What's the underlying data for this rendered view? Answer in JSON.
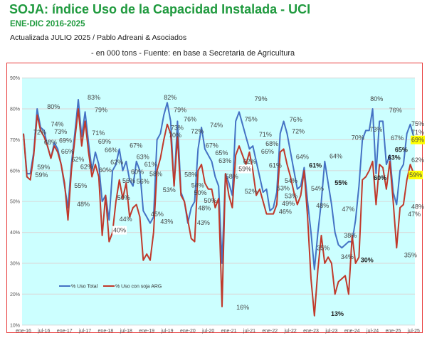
{
  "header": {
    "title": "SOJA: índice Uso de la Capacidad Instalada - UCI",
    "subtitle": "ENE-DIC 2016-2025",
    "updated": "Actualizada  JULIO  2025 / Pablo Adreani & Asociados",
    "source": "- en 000 tons - Fuente: en base a Secretaria de Agricultura"
  },
  "colors": {
    "total": "#4472C4",
    "arg": "#C0392B",
    "plot_bg": "#CCFFFF",
    "frame": "#E83A3A",
    "highlight": "#FFFF00",
    "title": "#1F9A3E"
  },
  "chart_data": {
    "type": "line",
    "title": "SOJA: índice Uso de la Capacidad Instalada - UCI",
    "xlabel": "",
    "ylabel": "",
    "ylim": [
      10,
      90
    ],
    "yticks": [
      "10%",
      "20%",
      "30%",
      "40%",
      "50%",
      "60%",
      "70%",
      "80%",
      "90%"
    ],
    "x_start": "ene-16",
    "x_end": "jul-25",
    "x_unit": "month",
    "xticks": [
      "ene-16",
      "jul-16",
      "ene-17",
      "jul-17",
      "ene-18",
      "jul-18",
      "ene-19",
      "jul-19",
      "ene-20",
      "jul-20",
      "ene-21",
      "jul-21",
      "ene-22",
      "jul-22",
      "ene-23",
      "jul-23",
      "ene-24",
      "jul-24",
      "ene-25",
      "jul-25"
    ],
    "grid": true,
    "legend_position": "bottom-left",
    "series": [
      {
        "name": "% Uso Total",
        "color": "#4472C4",
        "values": [
          72,
          59,
          59,
          66,
          80,
          74,
          73,
          68,
          64,
          69,
          67,
          62,
          55,
          48,
          62,
          72,
          83,
          71,
          79,
          69,
          60,
          66,
          62,
          50,
          52,
          44,
          60,
          62,
          67,
          60,
          63,
          57,
          55,
          63,
          60,
          47,
          45,
          43,
          45,
          70,
          72,
          78,
          82,
          76,
          55,
          76,
          53,
          50,
          43,
          48,
          50,
          67,
          74,
          67,
          65,
          63,
          58,
          55,
          30,
          59,
          56,
          52,
          76,
          79,
          75,
          71,
          67,
          68,
          63,
          58,
          53,
          54,
          47,
          48,
          53,
          72,
          76,
          72,
          66,
          60,
          54,
          55,
          61,
          50,
          40,
          28,
          40,
          50,
          63,
          56,
          49,
          40,
          36,
          35,
          36,
          37,
          37,
          44,
          55,
          70,
          73,
          73,
          80,
          59,
          76,
          76,
          62,
          65,
          53,
          49,
          60,
          62,
          72,
          75,
          71
        ]
      },
      {
        "name": "% Uso con soja ARG",
        "color": "#C0392B",
        "values": [
          72,
          58,
          57,
          65,
          78,
          73,
          71,
          68,
          64,
          68,
          66,
          62,
          56,
          44,
          60,
          70,
          80,
          68,
          76,
          66,
          58,
          62,
          58,
          39,
          52,
          37,
          40,
          50,
          57,
          51,
          56,
          45,
          48,
          49,
          45,
          31,
          33,
          31,
          40,
          60,
          64,
          70,
          75,
          72,
          55,
          71,
          52,
          50,
          44,
          38,
          37,
          60,
          62,
          56,
          54,
          54,
          48,
          51,
          16,
          59,
          52,
          48,
          65,
          68,
          65,
          62,
          66,
          60,
          52,
          54,
          50,
          46,
          46,
          46,
          49,
          66,
          67,
          62,
          58,
          53,
          49,
          52,
          60,
          45,
          25,
          13,
          28,
          39,
          30,
          32,
          30,
          20,
          24,
          25,
          26,
          20,
          39,
          30,
          32,
          57,
          58,
          60,
          63,
          49,
          62,
          61,
          54,
          63,
          50,
          35,
          48,
          49,
          57,
          62,
          59
        ]
      }
    ],
    "data_labels": [
      {
        "text": "72%",
        "x": 2.9,
        "y": 71.7
      },
      {
        "text": "80%",
        "x": 6.9,
        "y": 80
      },
      {
        "text": "74%",
        "x": 8,
        "y": 74
      },
      {
        "text": "73%",
        "x": 9,
        "y": 72.3
      },
      {
        "text": "68%",
        "x": 6,
        "y": 68.5
      },
      {
        "text": "69%",
        "x": 10.4,
        "y": 69
      },
      {
        "text": "66%",
        "x": 11,
        "y": 65
      },
      {
        "text": "59%",
        "x": 4,
        "y": 59.5
      },
      {
        "text": "59%",
        "x": 3.4,
        "y": 58.8
      },
      {
        "text": "62%",
        "x": 14,
        "y": 62
      },
      {
        "text": "62%",
        "x": 16.6,
        "y": 62
      },
      {
        "text": "55%",
        "x": 14.8,
        "y": 54.4
      },
      {
        "text": "48%",
        "x": 15.6,
        "y": 48.4
      },
      {
        "text": "83%",
        "x": 18.7,
        "y": 83
      },
      {
        "text": "79%",
        "x": 20.8,
        "y": 79
      },
      {
        "text": "71%",
        "x": 20,
        "y": 71.5
      },
      {
        "text": "69%",
        "x": 21.8,
        "y": 68.7
      },
      {
        "text": "66%",
        "x": 23.7,
        "y": 66
      },
      {
        "text": "60%",
        "x": 22,
        "y": 59.7
      },
      {
        "text": "62%",
        "x": 25.4,
        "y": 61.8
      },
      {
        "text": "67%",
        "x": 31,
        "y": 67.5
      },
      {
        "text": "63%",
        "x": 33,
        "y": 63
      },
      {
        "text": "60%",
        "x": 31.4,
        "y": 60
      },
      {
        "text": "61%",
        "x": 35.3,
        "y": 61
      },
      {
        "text": "58%",
        "x": 36.8,
        "y": 58
      },
      {
        "text": "56%",
        "x": 28.9,
        "y": 56
      },
      {
        "text": "56%",
        "x": 33,
        "y": 56
      },
      {
        "text": "50%",
        "x": 27.4,
        "y": 50.5
      },
      {
        "text": "44%",
        "x": 28,
        "y": 43.6
      },
      {
        "text": "40%",
        "x": 26.2,
        "y": 40,
        "box": "#FFFFFF"
      },
      {
        "text": "45%",
        "x": 37.2,
        "y": 45
      },
      {
        "text": "43%",
        "x": 40,
        "y": 43
      },
      {
        "text": "82%",
        "x": 41,
        "y": 83
      },
      {
        "text": "79%",
        "x": 43.9,
        "y": 79
      },
      {
        "text": "76%",
        "x": 46.8,
        "y": 76
      },
      {
        "text": "72%",
        "x": 48.9,
        "y": 72
      },
      {
        "text": "73%",
        "x": 43,
        "y": 73
      },
      {
        "text": "70%",
        "x": 42.4,
        "y": 71
      },
      {
        "text": "58%",
        "x": 47,
        "y": 58
      },
      {
        "text": "53%",
        "x": 40.7,
        "y": 53
      },
      {
        "text": "54%",
        "x": 49,
        "y": 54
      },
      {
        "text": "50%",
        "x": 49.8,
        "y": 50.5
      },
      {
        "text": "50%",
        "x": 52.7,
        "y": 50.5
      },
      {
        "text": "48%",
        "x": 51,
        "y": 48.4
      },
      {
        "text": "43%",
        "x": 50.7,
        "y": 42.5
      },
      {
        "text": "74%",
        "x": 54.5,
        "y": 74
      },
      {
        "text": "67%",
        "x": 53.2,
        "y": 67.5
      },
      {
        "text": "65%",
        "x": 56,
        "y": 64.5
      },
      {
        "text": "63%",
        "x": 57,
        "y": 63
      },
      {
        "text": "58%",
        "x": 59,
        "y": 57.7
      },
      {
        "text": "79%",
        "x": 67.5,
        "y": 82.5
      },
      {
        "text": "75%",
        "x": 64.6,
        "y": 76
      },
      {
        "text": "71%",
        "x": 68.8,
        "y": 71
      },
      {
        "text": "68%",
        "x": 70.7,
        "y": 68
      },
      {
        "text": "66%",
        "x": 69.4,
        "y": 65.5
      },
      {
        "text": "62%",
        "x": 64.2,
        "y": 62.3
      },
      {
        "text": "59%",
        "x": 62.8,
        "y": 59.5,
        "box": "#FFFFFF"
      },
      {
        "text": "61%",
        "x": 71.7,
        "y": 61
      },
      {
        "text": "52%",
        "x": 64.6,
        "y": 52.6
      },
      {
        "text": "53%",
        "x": 74,
        "y": 53.7
      },
      {
        "text": "16%",
        "x": 62.2,
        "y": 15
      },
      {
        "text": "76%",
        "x": 77.7,
        "y": 75.9
      },
      {
        "text": "72%",
        "x": 78.4,
        "y": 72
      },
      {
        "text": "64%",
        "x": 79.6,
        "y": 63.8
      },
      {
        "text": "54%",
        "x": 76.3,
        "y": 53.9
      },
      {
        "text": "53%",
        "x": 76.3,
        "y": 52.5
      },
      {
        "text": "54%",
        "x": 84,
        "y": 53.5
      },
      {
        "text": "49%",
        "x": 75.5,
        "y": 49.3
      },
      {
        "text": "46%",
        "x": 74.6,
        "y": 46
      },
      {
        "text": "61%",
        "x": 83.4,
        "y": 61,
        "bold": true
      },
      {
        "text": "48%",
        "x": 85.5,
        "y": 48
      },
      {
        "text": "35%",
        "x": 85.7,
        "y": 34.3
      },
      {
        "text": "13%",
        "x": 89.8,
        "y": 13,
        "bold": true
      },
      {
        "text": "64%",
        "x": 89.4,
        "y": 64
      },
      {
        "text": "55%",
        "x": 90.9,
        "y": 55.3,
        "bold": true
      },
      {
        "text": "47%",
        "x": 93,
        "y": 46.8
      },
      {
        "text": "38%",
        "x": 93.6,
        "y": 38.3
      },
      {
        "text": "34%",
        "x": 92.7,
        "y": 31.4
      },
      {
        "text": "30%",
        "x": 98.5,
        "y": 30.4,
        "bold": true
      },
      {
        "text": "70%",
        "x": 95.8,
        "y": 70
      },
      {
        "text": "73%",
        "x": 101.1,
        "y": 72.6
      },
      {
        "text": "80%",
        "x": 101.3,
        "y": 82.5
      },
      {
        "text": "76%",
        "x": 106.8,
        "y": 78.8
      },
      {
        "text": "67%",
        "x": 107.3,
        "y": 69.9
      },
      {
        "text": "63%",
        "x": 106.4,
        "y": 64.6,
        "bold": true
      },
      {
        "text": "60%",
        "x": 102.3,
        "y": 57,
        "bold": true
      },
      {
        "text": "65%",
        "x": 108.5,
        "y": 65,
        "bold": true
      },
      {
        "text": "75%",
        "x": 113.7,
        "y": 74.5
      },
      {
        "text": "71%",
        "x": 113.7,
        "y": 71.5
      },
      {
        "text": "69%",
        "x": 114.8,
        "y": 69.4,
        "box": "#FFFF00"
      },
      {
        "text": "62%",
        "x": 113.9,
        "y": 62.7
      },
      {
        "text": "59%",
        "x": 112.7,
        "y": 57.9,
        "box": "#FFFF00"
      },
      {
        "text": "48%",
        "x": 113.3,
        "y": 47.5
      },
      {
        "text": "47%",
        "x": 112.3,
        "y": 45.4
      },
      {
        "text": "35%",
        "x": 111.2,
        "y": 32
      }
    ]
  }
}
